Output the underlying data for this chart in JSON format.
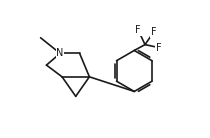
{
  "bg_color": "#ffffff",
  "line_color": "#1a1a1a",
  "line_width": 1.2,
  "font_size": 7.0,
  "figsize": [
    2.1,
    1.38
  ],
  "dpi": 100,
  "xlim": [
    0.0,
    10.0
  ],
  "ylim": [
    1.5,
    8.5
  ]
}
